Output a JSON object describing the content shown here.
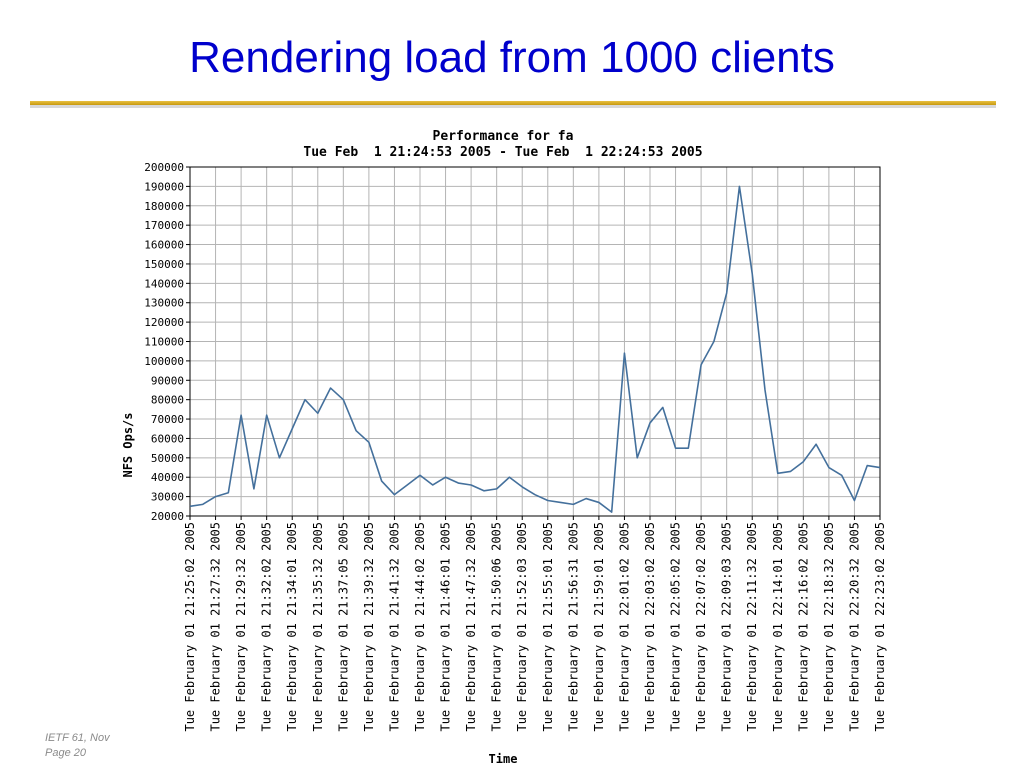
{
  "slide": {
    "title": "Rendering load from 1000 clients",
    "footer": [
      "IETF 61, Nov",
      "Page 20"
    ]
  },
  "chart_data": {
    "type": "line",
    "title": "Performance for fa",
    "subtitle": "Tue Feb  1 21:24:53 2005 - Tue Feb  1 22:24:53 2005",
    "y_label": "NFS Ops/s",
    "x_label": "Time",
    "color": "#44709c",
    "grid": true,
    "ylim": [
      20000,
      200000
    ],
    "yticks": [
      20000,
      30000,
      40000,
      50000,
      60000,
      70000,
      80000,
      90000,
      100000,
      110000,
      120000,
      130000,
      140000,
      150000,
      160000,
      170000,
      180000,
      190000,
      200000
    ],
    "categories": [
      "Tue February 01 21:25:02 2005",
      null,
      "Tue February 01 21:27:32 2005",
      null,
      "Tue February 01 21:29:32 2005",
      null,
      "Tue February 01 21:32:02 2005",
      null,
      "Tue February 01 21:34:01 2005",
      null,
      "Tue February 01 21:35:32 2005",
      null,
      "Tue February 01 21:37:05 2005",
      null,
      "Tue February 01 21:39:32 2005",
      null,
      "Tue February 01 21:41:32 2005",
      null,
      "Tue February 01 21:44:02 2005",
      null,
      "Tue February 01 21:46:01 2005",
      null,
      "Tue February 01 21:47:32 2005",
      null,
      "Tue February 01 21:50:06 2005",
      null,
      "Tue February 01 21:52:03 2005",
      null,
      "Tue February 01 21:55:01 2005",
      null,
      "Tue February 01 21:56:31 2005",
      null,
      "Tue February 01 21:59:01 2005",
      null,
      "Tue February 01 22:01:02 2005",
      null,
      "Tue February 01 22:03:02 2005",
      null,
      "Tue February 01 22:05:02 2005",
      null,
      "Tue February 01 22:07:02 2005",
      null,
      "Tue February 01 22:09:03 2005",
      null,
      "Tue February 01 22:11:32 2005",
      null,
      "Tue February 01 22:14:01 2005",
      null,
      "Tue February 01 22:16:02 2005",
      null,
      "Tue February 01 22:18:32 2005",
      null,
      "Tue February 01 22:20:32 2005",
      null,
      "Tue February 01 22:23:02 2005"
    ],
    "values": [
      25000,
      26000,
      30000,
      32000,
      72000,
      34000,
      72000,
      50000,
      65000,
      80000,
      73000,
      86000,
      80000,
      64000,
      58000,
      38000,
      31000,
      36000,
      41000,
      36000,
      40000,
      37000,
      36000,
      33000,
      34000,
      40000,
      35000,
      31000,
      28000,
      27000,
      26000,
      29000,
      27000,
      22000,
      104000,
      50000,
      68000,
      76000,
      55000,
      55000,
      98000,
      110000,
      135000,
      190000,
      145000,
      85000,
      42000,
      43000,
      48000,
      57000,
      45000,
      41000,
      28000,
      46000,
      45000
    ]
  }
}
